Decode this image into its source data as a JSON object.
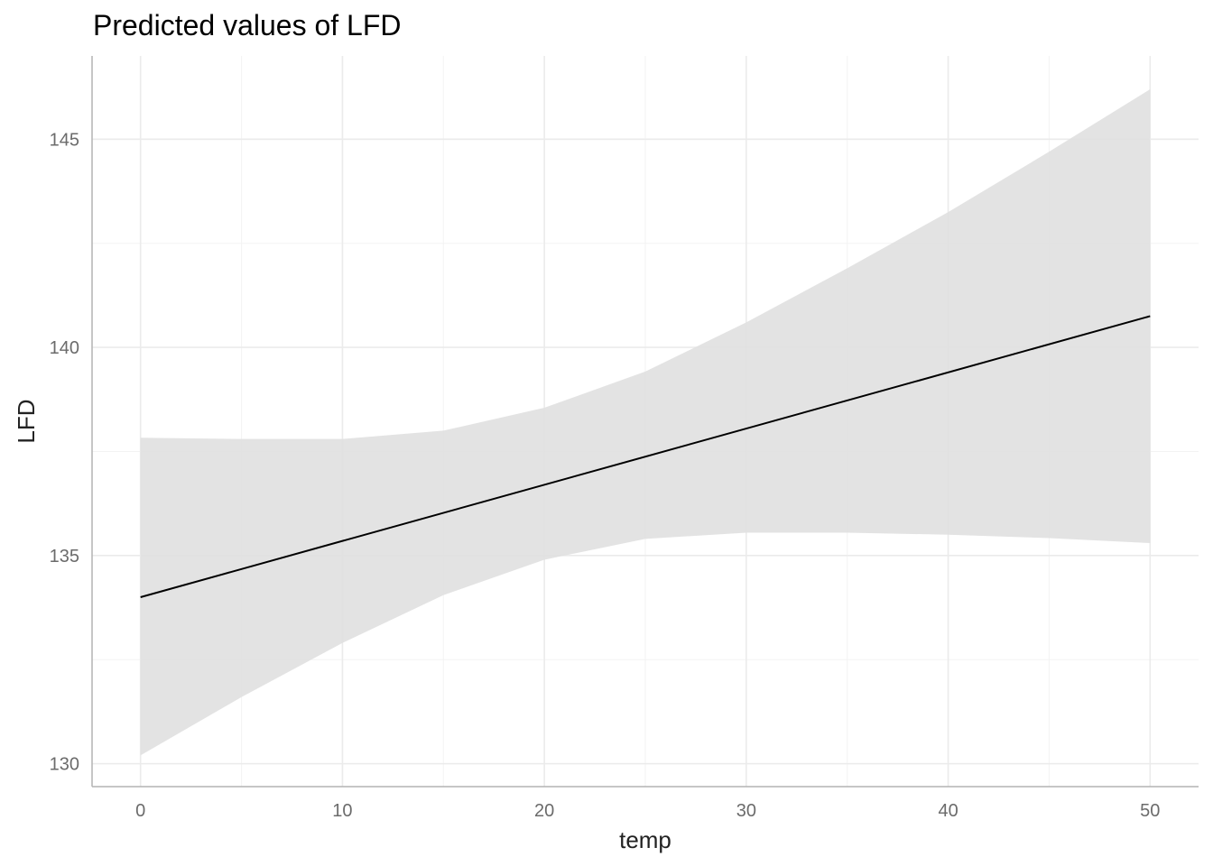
{
  "chart_data": {
    "type": "line",
    "title": "Predicted values of LFD",
    "xlabel": "temp",
    "ylabel": "LFD",
    "xlim": [
      -2.4,
      52.4
    ],
    "ylim": [
      129.45,
      147.0
    ],
    "x_ticks": [
      0,
      10,
      20,
      30,
      40,
      50
    ],
    "y_ticks": [
      130,
      135,
      140,
      145
    ],
    "grid": true,
    "legend": "none",
    "series": [
      {
        "x": [
          0,
          50
        ],
        "y": [
          134.0,
          140.75
        ],
        "color": "#000000"
      }
    ],
    "ribbon": {
      "color": "#e0e0e0",
      "x": [
        0,
        5,
        10,
        15,
        20,
        25,
        30,
        35,
        40,
        45,
        50
      ],
      "lower": [
        130.2,
        131.6,
        132.9,
        134.05,
        134.9,
        135.4,
        135.55,
        135.55,
        135.5,
        135.42,
        135.3
      ],
      "upper": [
        137.83,
        137.8,
        137.8,
        138.0,
        138.55,
        139.42,
        140.6,
        141.9,
        143.25,
        144.7,
        146.2
      ]
    }
  }
}
